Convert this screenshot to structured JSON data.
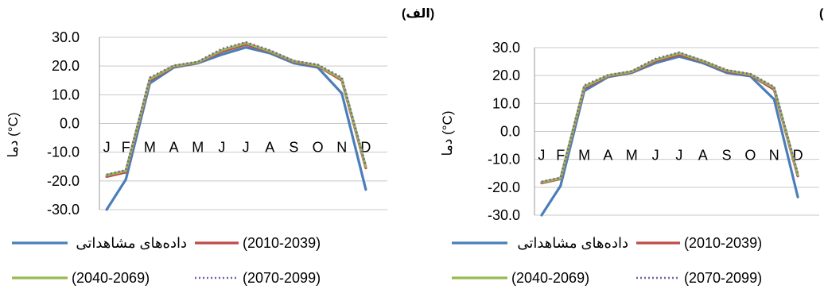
{
  "chart_data": [
    {
      "type": "line",
      "title": "(الف)",
      "ylabel": "دما (°C)",
      "xlabel": "",
      "ylim": [
        -30,
        30
      ],
      "yticks": [
        "30.0",
        "20.0",
        "10.0",
        "0.0",
        "-10.0",
        "-20.0",
        "-30.0"
      ],
      "categories": [
        "J",
        "F",
        "M",
        "A",
        "M",
        "J",
        "J",
        "A",
        "S",
        "O",
        "N",
        "D"
      ],
      "grid": true,
      "legend_position": "bottom",
      "series": [
        {
          "name": "داده‌های مشاهداتی",
          "color": "#4A7EBB",
          "style": "solid",
          "values": [
            -30.0,
            -19.5,
            14.0,
            19.5,
            21.0,
            24.0,
            26.5,
            24.5,
            21.0,
            19.5,
            10.5,
            -23.0
          ]
        },
        {
          "name": "(2010-2039)",
          "color": "#BE4B48",
          "style": "solid",
          "values": [
            -18.5,
            -17.0,
            15.0,
            19.8,
            21.2,
            25.0,
            27.5,
            25.0,
            21.5,
            20.0,
            15.0,
            -15.5
          ]
        },
        {
          "name": "(2040-2069)",
          "color": "#98B954",
          "style": "solid",
          "values": [
            -18.0,
            -16.5,
            15.5,
            20.0,
            21.3,
            25.5,
            28.0,
            25.2,
            21.7,
            20.2,
            15.5,
            -15.0
          ]
        },
        {
          "name": "(2070-2099)",
          "color": "#7D60A0",
          "style": "dotted",
          "values": [
            -17.8,
            -16.2,
            16.0,
            20.2,
            21.5,
            26.0,
            28.3,
            25.5,
            21.8,
            20.5,
            16.0,
            -14.8
          ]
        }
      ]
    },
    {
      "type": "line",
      "title": "(ب)",
      "ylabel": "دما (°C)",
      "xlabel": "",
      "ylim": [
        -30,
        30
      ],
      "yticks": [
        "30.0",
        "20.0",
        "10.0",
        "0.0",
        "-10.0",
        "-20.0",
        "-30.0"
      ],
      "categories": [
        "J",
        "F",
        "M",
        "A",
        "M",
        "J",
        "J",
        "A",
        "S",
        "O",
        "N",
        "D"
      ],
      "grid": true,
      "legend_position": "bottom",
      "series": [
        {
          "name": "داده‌های مشاهداتی",
          "color": "#4A7EBB",
          "style": "solid",
          "values": [
            -30.0,
            -19.5,
            14.5,
            19.5,
            21.0,
            24.5,
            26.8,
            24.5,
            21.0,
            19.8,
            11.5,
            -23.5
          ]
        },
        {
          "name": "(2010-2039)",
          "color": "#BE4B48",
          "style": "solid",
          "values": [
            -18.5,
            -17.0,
            15.5,
            19.8,
            21.2,
            25.2,
            27.5,
            25.0,
            21.5,
            20.2,
            15.0,
            -16.0
          ]
        },
        {
          "name": "(2040-2069)",
          "color": "#98B954",
          "style": "solid",
          "values": [
            -18.2,
            -16.8,
            16.0,
            20.0,
            21.4,
            25.6,
            28.0,
            25.2,
            21.8,
            20.4,
            15.6,
            -15.5
          ]
        },
        {
          "name": "(2070-2099)",
          "color": "#7D60A0",
          "style": "dotted",
          "values": [
            -18.0,
            -16.5,
            16.5,
            20.2,
            21.6,
            26.0,
            28.3,
            25.4,
            22.0,
            20.6,
            16.0,
            -15.0
          ]
        }
      ]
    }
  ]
}
